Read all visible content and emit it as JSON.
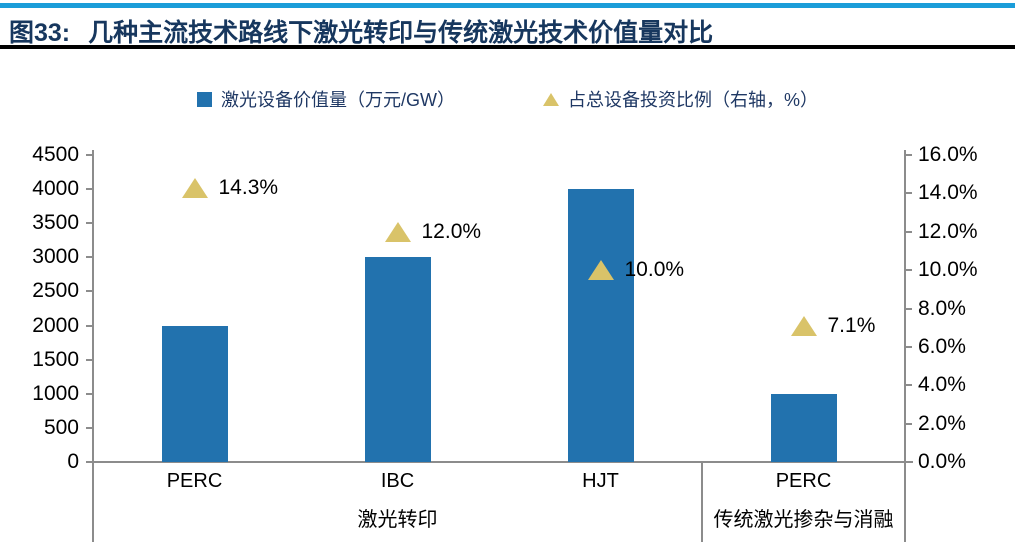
{
  "header": {
    "figure_label": "图33:",
    "title": "几种主流技术路线下激光转印与传统激光技术价值量对比",
    "title_color": "#17375E",
    "accent_line_color": "#1B9DD9",
    "rule_color": "#000000"
  },
  "chart_data": {
    "type": "bar",
    "categories": [
      "PERC",
      "IBC",
      "HJT",
      "PERC"
    ],
    "category_groups": [
      {
        "label": "激光转印",
        "start": 0,
        "end": 2
      },
      {
        "label": "传统激光掺杂与消融",
        "start": 3,
        "end": 3
      }
    ],
    "series": [
      {
        "name": "激光设备价值量（万元/GW）",
        "type": "bar",
        "axis": "left",
        "color": "#2272AE",
        "values": [
          2000,
          3000,
          4000,
          1000
        ]
      },
      {
        "name": "占总设备投资比例（右轴，%）",
        "type": "scatter",
        "marker": "triangle",
        "axis": "right",
        "color": "#D9C369",
        "values": [
          14.3,
          12.0,
          10.0,
          7.1
        ],
        "point_labels": [
          "14.3%",
          "12.0%",
          "10.0%",
          "7.1%"
        ]
      }
    ],
    "left_axis": {
      "min": 0,
      "max": 4500,
      "step": 500,
      "tick_labels": [
        "4500",
        "4000",
        "3500",
        "3000",
        "2500",
        "2000",
        "1500",
        "1000",
        "500",
        "0"
      ]
    },
    "right_axis": {
      "min": 0,
      "max": 16,
      "step": 2,
      "tick_labels": [
        "16.0%",
        "14.0%",
        "12.0%",
        "10.0%",
        "8.0%",
        "6.0%",
        "4.0%",
        "2.0%",
        "0.0%"
      ]
    },
    "grid": false,
    "legend_position": "top",
    "axis_line_color": "#8C8C8C",
    "text_color": "#000000"
  }
}
